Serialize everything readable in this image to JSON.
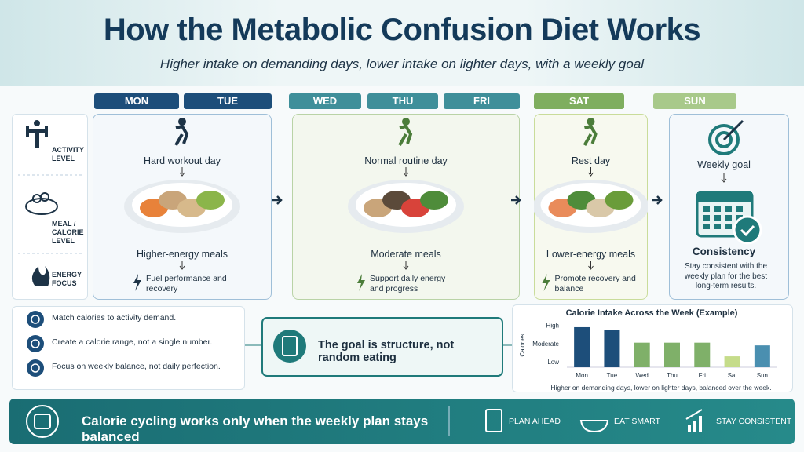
{
  "header": {
    "title": "How the Metabolic Confusion Diet Works",
    "subtitle": "Higher intake on demanding days, lower intake on lighter days, with a weekly goal"
  },
  "days": [
    "MON",
    "TUE",
    "WED",
    "THU",
    "FRI",
    "SAT",
    "SUN"
  ],
  "row_labels": [
    "ACTIVITY LEVEL",
    "MEAL / CALORIE LEVEL",
    "ENERGY FOCUS"
  ],
  "columns": [
    {
      "activity": "Hard workout day",
      "meal": "Higher-energy meals",
      "focus": "Fuel performance and recovery"
    },
    {
      "activity": "Normal routine day",
      "meal": "Moderate meals",
      "focus": "Support daily energy and progress"
    },
    {
      "activity": "Rest day",
      "meal": "Lower-energy meals",
      "focus": "Promote recovery and balance"
    }
  ],
  "weekly": {
    "title": "Weekly goal",
    "label": "Consistency",
    "text": "Stay consistent with the weekly plan for the best long-term results."
  },
  "tips": [
    "Match calories to activity demand.",
    "Create a calorie range, not a single number.",
    "Focus on weekly balance, not daily perfection."
  ],
  "goal": "The goal is structure, not random eating",
  "chart_data": {
    "type": "bar",
    "title": "Calorie Intake Across the Week (Example)",
    "y_label": "Calories",
    "categories": [
      "Mon",
      "Tue",
      "Wed",
      "Thu",
      "Fri",
      "Sat",
      "Sun"
    ],
    "values": [
      2.9,
      2.75,
      2.05,
      2.05,
      2.05,
      1.3,
      1.9
    ],
    "colors": [
      "#1d4e7a",
      "#1d4e7a",
      "#7fb069",
      "#7fb069",
      "#7fb069",
      "#c5dc8a",
      "#4a8fb0"
    ],
    "ylim": [
      0.7,
      3.2
    ],
    "yticks": [
      {
        "value": 1,
        "label": "Low"
      },
      {
        "value": 2,
        "label": "Moderate"
      },
      {
        "value": 3,
        "label": "High"
      }
    ],
    "caption": "Higher on demanding days, lower on lighter days, balanced over the week."
  },
  "footer": {
    "message": "Calorie cycling works only when the weekly plan stays balanced",
    "actions": [
      "PLAN AHEAD",
      "EAT SMART",
      "STAY CONSISTENT"
    ]
  }
}
